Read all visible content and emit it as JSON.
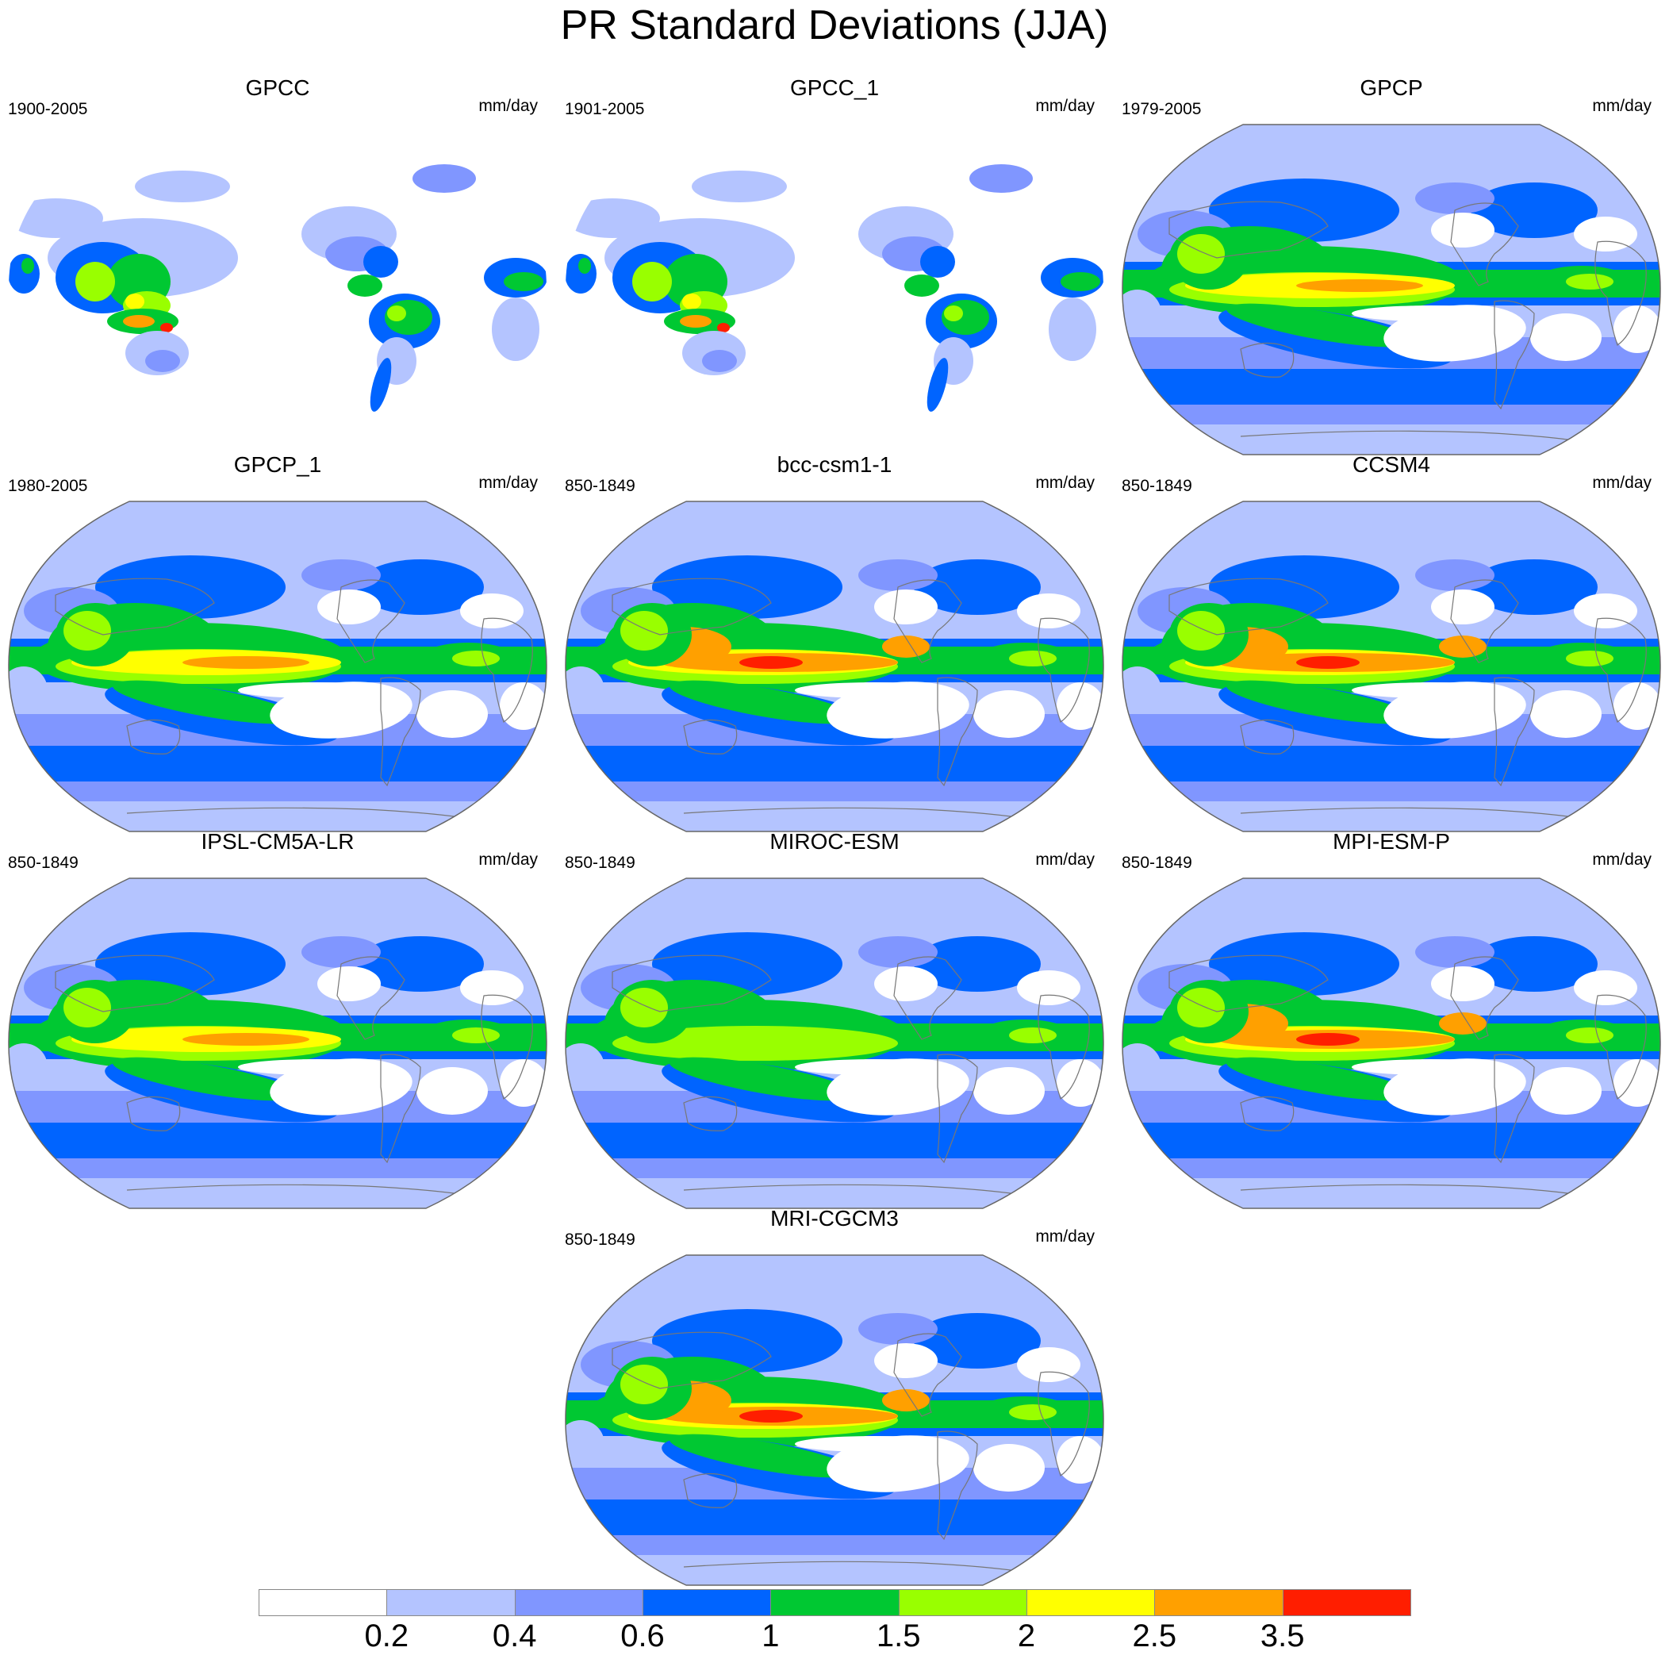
{
  "figure": {
    "title": "PR Standard Deviations (JJA)"
  },
  "panels": [
    {
      "title": "GPCC",
      "years": "1900-2005",
      "units": "mm/day",
      "style": "land"
    },
    {
      "title": "GPCC_1",
      "years": "1901-2005",
      "units": "mm/day",
      "style": "land"
    },
    {
      "title": "GPCP",
      "years": "1979-2005",
      "units": "mm/day",
      "style": "obs"
    },
    {
      "title": "GPCP_1",
      "years": "1980-2005",
      "units": "mm/day",
      "style": "obs"
    },
    {
      "title": "bcc-csm1-1",
      "years": "850-1849",
      "units": "mm/day",
      "style": "strong"
    },
    {
      "title": "CCSM4",
      "years": "850-1849",
      "units": "mm/day",
      "style": "strong"
    },
    {
      "title": "IPSL-CM5A-LR",
      "years": "850-1849",
      "units": "mm/day",
      "style": "model"
    },
    {
      "title": "MIROC-ESM",
      "years": "850-1849",
      "units": "mm/day",
      "style": "weak"
    },
    {
      "title": "MPI-ESM-P",
      "years": "850-1849",
      "units": "mm/day",
      "style": "strong"
    },
    {
      "title": "MRI-CGCM3",
      "years": "850-1849",
      "units": "mm/day",
      "style": "strong"
    }
  ],
  "colorbar": {
    "colors": [
      "#ffffff",
      "#b4c4ff",
      "#8096ff",
      "#0064ff",
      "#00c832",
      "#99ff00",
      "#ffff00",
      "#ffa000",
      "#ff1e00"
    ],
    "labels": [
      "0.2",
      "0.4",
      "0.6",
      "1",
      "1.5",
      "2",
      "2.5",
      "3.5"
    ]
  }
}
